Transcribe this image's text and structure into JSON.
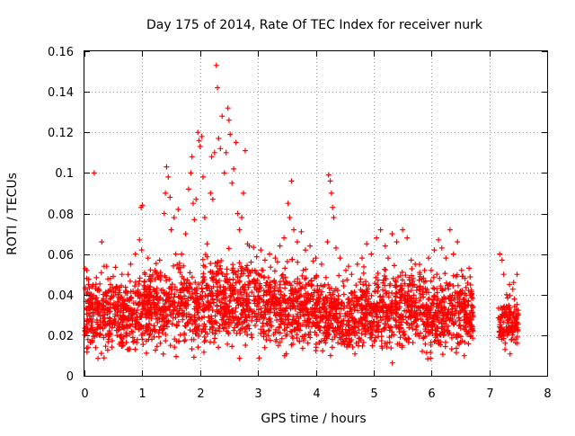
{
  "chart_data": {
    "type": "scatter",
    "title": "Day 175 of 2014, Rate Of TEC Index for receiver nurk",
    "xlabel": "GPS time / hours",
    "ylabel": "ROTI / TECUs",
    "xlim": [
      0,
      8
    ],
    "ylim": [
      0,
      0.16
    ],
    "xticks": [
      0,
      1,
      2,
      3,
      4,
      5,
      6,
      7,
      8
    ],
    "xtick_labels": [
      "0",
      "1",
      "2",
      "3",
      "4",
      "5",
      "6",
      "7",
      "8"
    ],
    "yticks": [
      0,
      0.02,
      0.04,
      0.06,
      0.08,
      0.1,
      0.12,
      0.14,
      0.16
    ],
    "ytick_labels": [
      "0",
      "0.02",
      "0.04",
      "0.06",
      "0.08",
      "0.1",
      "0.12",
      "0.14",
      "0.16"
    ],
    "grid": true,
    "marker": "+",
    "color": "#ff0000",
    "series": [
      {
        "name": "ROTI",
        "points": [
          [
            0.04,
            0.052
          ],
          [
            0.07,
            0.045
          ],
          [
            0.1,
            0.038
          ],
          [
            0.13,
            0.044
          ],
          [
            0.17,
            0.1
          ],
          [
            0.3,
            0.066
          ],
          [
            0.34,
            0.054
          ],
          [
            0.45,
            0.048
          ],
          [
            0.55,
            0.044
          ],
          [
            0.65,
            0.05
          ],
          [
            0.72,
            0.042
          ],
          [
            0.8,
            0.055
          ],
          [
            0.88,
            0.06
          ],
          [
            0.95,
            0.067
          ],
          [
            0.98,
            0.083
          ],
          [
            1.0,
            0.084
          ],
          [
            0.99,
            0.062
          ],
          [
            1.05,
            0.05
          ],
          [
            1.1,
            0.058
          ],
          [
            1.15,
            0.048
          ],
          [
            1.22,
            0.052
          ],
          [
            1.3,
            0.057
          ],
          [
            1.38,
            0.08
          ],
          [
            1.4,
            0.09
          ],
          [
            1.42,
            0.103
          ],
          [
            1.45,
            0.098
          ],
          [
            1.48,
            0.088
          ],
          [
            1.5,
            0.072
          ],
          [
            1.55,
            0.078
          ],
          [
            1.58,
            0.06
          ],
          [
            1.62,
            0.082
          ],
          [
            1.68,
            0.06
          ],
          [
            1.75,
            0.07
          ],
          [
            1.8,
            0.092
          ],
          [
            1.84,
            0.1
          ],
          [
            1.86,
            0.108
          ],
          [
            1.88,
            0.085
          ],
          [
            1.9,
            0.077
          ],
          [
            1.93,
            0.087
          ],
          [
            1.96,
            0.12
          ],
          [
            1.98,
            0.116
          ],
          [
            2.0,
            0.113
          ],
          [
            2.03,
            0.118
          ],
          [
            2.05,
            0.098
          ],
          [
            2.08,
            0.078
          ],
          [
            2.12,
            0.065
          ],
          [
            2.18,
            0.09
          ],
          [
            2.2,
            0.108
          ],
          [
            2.22,
            0.087
          ],
          [
            2.25,
            0.11
          ],
          [
            2.28,
            0.153
          ],
          [
            2.3,
            0.142
          ],
          [
            2.32,
            0.117
          ],
          [
            2.35,
            0.112
          ],
          [
            2.38,
            0.128
          ],
          [
            2.42,
            0.1
          ],
          [
            2.45,
            0.11
          ],
          [
            2.48,
            0.132
          ],
          [
            2.5,
            0.126
          ],
          [
            2.52,
            0.119
          ],
          [
            2.55,
            0.095
          ],
          [
            2.58,
            0.102
          ],
          [
            2.62,
            0.115
          ],
          [
            2.65,
            0.08
          ],
          [
            2.68,
            0.072
          ],
          [
            2.72,
            0.078
          ],
          [
            2.75,
            0.09
          ],
          [
            2.78,
            0.111
          ],
          [
            2.82,
            0.065
          ],
          [
            2.88,
            0.056
          ],
          [
            2.95,
            0.052
          ],
          [
            3.05,
            0.062
          ],
          [
            3.12,
            0.057
          ],
          [
            3.2,
            0.06
          ],
          [
            3.3,
            0.058
          ],
          [
            3.38,
            0.064
          ],
          [
            3.45,
            0.068
          ],
          [
            3.52,
            0.085
          ],
          [
            3.55,
            0.078
          ],
          [
            3.58,
            0.096
          ],
          [
            3.62,
            0.072
          ],
          [
            3.68,
            0.066
          ],
          [
            3.75,
            0.071
          ],
          [
            3.82,
            0.062
          ],
          [
            3.9,
            0.064
          ],
          [
            4.0,
            0.058
          ],
          [
            4.1,
            0.055
          ],
          [
            4.2,
            0.066
          ],
          [
            4.22,
            0.099
          ],
          [
            4.25,
            0.096
          ],
          [
            4.27,
            0.09
          ],
          [
            4.29,
            0.083
          ],
          [
            4.31,
            0.078
          ],
          [
            4.35,
            0.063
          ],
          [
            4.42,
            0.058
          ],
          [
            4.52,
            0.052
          ],
          [
            4.62,
            0.05
          ],
          [
            4.72,
            0.055
          ],
          [
            4.8,
            0.058
          ],
          [
            4.88,
            0.065
          ],
          [
            4.96,
            0.06
          ],
          [
            5.05,
            0.068
          ],
          [
            5.12,
            0.072
          ],
          [
            5.2,
            0.064
          ],
          [
            5.25,
            0.058
          ],
          [
            5.32,
            0.07
          ],
          [
            5.4,
            0.066
          ],
          [
            5.5,
            0.072
          ],
          [
            5.58,
            0.068
          ],
          [
            5.65,
            0.057
          ],
          [
            5.72,
            0.055
          ],
          [
            5.8,
            0.05
          ],
          [
            5.88,
            0.052
          ],
          [
            5.95,
            0.058
          ],
          [
            6.05,
            0.062
          ],
          [
            6.12,
            0.067
          ],
          [
            6.18,
            0.063
          ],
          [
            6.25,
            0.058
          ],
          [
            6.32,
            0.072
          ],
          [
            6.38,
            0.06
          ],
          [
            6.45,
            0.066
          ],
          [
            6.52,
            0.052
          ],
          [
            6.58,
            0.048
          ],
          [
            6.65,
            0.053
          ],
          [
            6.7,
            0.04
          ],
          [
            7.18,
            0.06
          ],
          [
            7.22,
            0.057
          ],
          [
            7.25,
            0.05
          ],
          [
            7.3,
            0.04
          ],
          [
            7.35,
            0.045
          ],
          [
            7.42,
            0.046
          ],
          [
            7.48,
            0.05
          ],
          [
            7.5,
            0.03
          ]
        ],
        "bands": [
          {
            "x_range": [
              0.0,
              1.0
            ],
            "y_range": [
              0.004,
              0.05
            ]
          },
          {
            "x_range": [
              1.0,
              2.0
            ],
            "y_range": [
              0.005,
              0.055
            ]
          },
          {
            "x_range": [
              2.0,
              3.0
            ],
            "y_range": [
              0.006,
              0.06
            ]
          },
          {
            "x_range": [
              3.0,
              4.0
            ],
            "y_range": [
              0.006,
              0.055
            ]
          },
          {
            "x_range": [
              4.0,
              5.0
            ],
            "y_range": [
              0.004,
              0.05
            ]
          },
          {
            "x_range": [
              5.0,
              6.0
            ],
            "y_range": [
              0.005,
              0.052
            ]
          },
          {
            "x_range": [
              6.0,
              6.72
            ],
            "y_range": [
              0.006,
              0.05
            ]
          },
          {
            "x_range": [
              7.15,
              7.5
            ],
            "y_range": [
              0.008,
              0.04
            ]
          }
        ]
      }
    ]
  }
}
